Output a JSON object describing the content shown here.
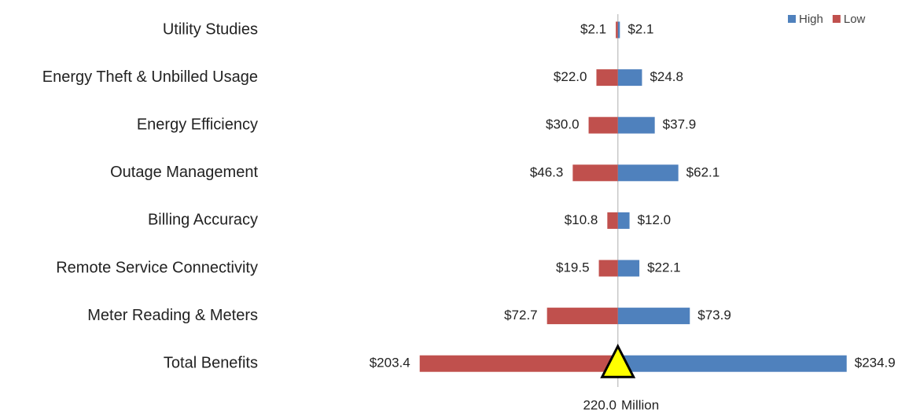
{
  "chart_data": {
    "type": "tornado",
    "categories": [
      "Utility Studies",
      "Energy Theft & Unbilled Usage",
      "Energy Efficiency",
      "Outage Management",
      "Billing Accuracy",
      "Remote Service Connectivity",
      "Meter Reading & Meters",
      "Total Benefits"
    ],
    "series": [
      {
        "name": "High",
        "color": "#4f81bd",
        "values": [
          2.1,
          24.8,
          37.9,
          62.1,
          12.0,
          22.1,
          73.9,
          234.9
        ],
        "value_labels": [
          "$2.1",
          "$24.8",
          "$37.9",
          "$62.1",
          "$12.0",
          "$22.1",
          "$73.9",
          "$234.9"
        ]
      },
      {
        "name": "Low",
        "color": "#c0504d",
        "values": [
          2.1,
          22.0,
          30.0,
          46.3,
          10.8,
          19.5,
          72.7,
          203.4
        ],
        "value_labels": [
          "$2.1",
          "$22.0",
          "$30.0",
          "$46.3",
          "$10.8",
          "$19.5",
          "$72.7",
          "$203.4"
        ]
      }
    ],
    "xlim": [
      -250,
      290
    ],
    "baseline": {
      "value": 220.0,
      "label": "220.0"
    },
    "axis_label": "Million",
    "marker_color": "#ffff00",
    "legend": "top-right"
  }
}
